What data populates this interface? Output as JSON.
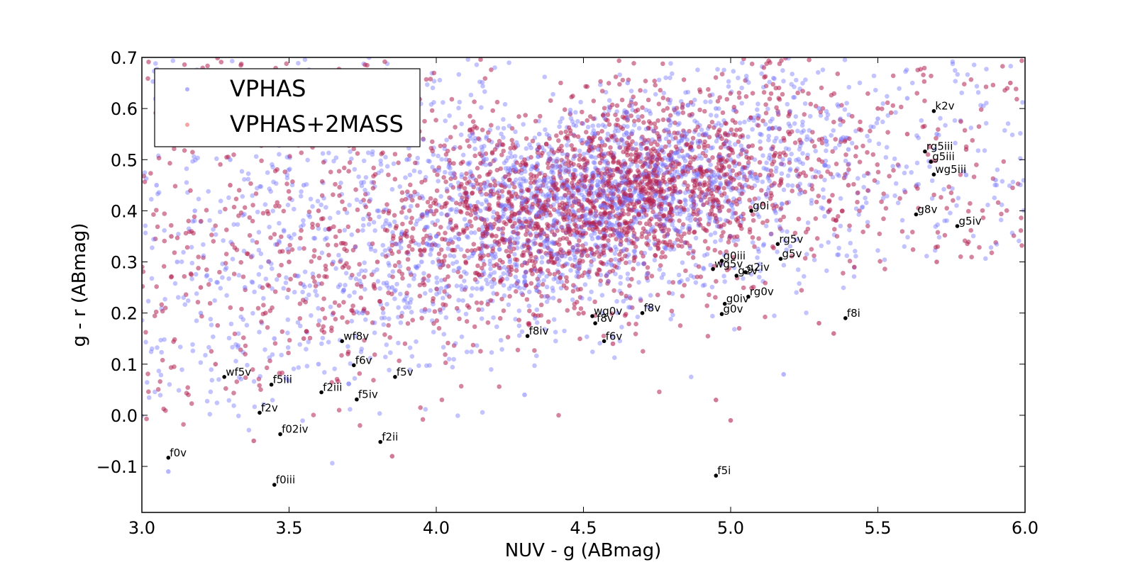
{
  "chart_data": {
    "type": "scatter",
    "xlabel": "NUV - g (ABmag)",
    "ylabel": "g - r (ABmag)",
    "xlim": [
      3.0,
      6.0
    ],
    "ylim": [
      -0.19,
      0.7
    ],
    "xticks": [
      3.0,
      3.5,
      4.0,
      4.5,
      5.0,
      5.5,
      6.0
    ],
    "xtick_labels": [
      "3.0",
      "3.5",
      "4.0",
      "4.5",
      "5.0",
      "5.5",
      "6.0"
    ],
    "yticks": [
      -0.1,
      0.0,
      0.1,
      0.2,
      0.3,
      0.4,
      0.5,
      0.6,
      0.7
    ],
    "ytick_labels": [
      "−0.1",
      "0.0",
      "0.1",
      "0.2",
      "0.3",
      "0.4",
      "0.5",
      "0.6",
      "0.7"
    ],
    "grid": false,
    "legend_position": "top-left",
    "series": [
      {
        "name": "VPHAS",
        "color": "#6f6fff",
        "points": [
          [
            3.05,
            0.45
          ],
          [
            3.1,
            0.62
          ],
          [
            3.12,
            0.3
          ],
          [
            3.15,
            0.55
          ],
          [
            3.18,
            0.4
          ],
          [
            3.2,
            0.2
          ],
          [
            3.09,
            -0.11
          ],
          [
            3.3,
            0.5
          ],
          [
            3.35,
            0.25
          ],
          [
            3.4,
            0.6
          ],
          [
            3.45,
            0.15
          ],
          [
            3.5,
            0.35
          ],
          [
            3.55,
            0.45
          ],
          [
            3.6,
            0.1
          ],
          [
            3.65,
            0.3
          ],
          [
            3.7,
            0.55
          ],
          [
            3.75,
            0.2
          ],
          [
            3.8,
            0.4
          ],
          [
            3.85,
            0.25
          ],
          [
            3.9,
            0.5
          ],
          [
            3.95,
            0.3
          ],
          [
            4.0,
            0.35
          ],
          [
            4.05,
            0.45
          ],
          [
            4.1,
            0.25
          ],
          [
            4.15,
            0.4
          ],
          [
            4.2,
            0.5
          ],
          [
            4.25,
            0.3
          ],
          [
            4.3,
            0.42
          ],
          [
            4.35,
            0.55
          ],
          [
            4.4,
            0.38
          ],
          [
            4.45,
            0.48
          ],
          [
            4.5,
            0.36
          ],
          [
            4.55,
            0.52
          ],
          [
            4.6,
            0.44
          ],
          [
            4.65,
            0.58
          ],
          [
            4.7,
            0.4
          ],
          [
            4.75,
            0.5
          ],
          [
            4.8,
            0.47
          ],
          [
            4.85,
            0.55
          ],
          [
            4.9,
            0.42
          ],
          [
            4.95,
            0.6
          ],
          [
            5.0,
            0.5
          ],
          [
            5.05,
            0.45
          ],
          [
            5.1,
            0.55
          ],
          [
            5.15,
            0.4
          ],
          [
            5.2,
            0.5
          ],
          [
            5.3,
            0.6
          ],
          [
            5.4,
            0.52
          ],
          [
            5.5,
            0.58
          ],
          [
            5.6,
            0.62
          ],
          [
            5.7,
            0.55
          ],
          [
            5.8,
            0.47
          ],
          [
            5.9,
            0.46
          ],
          [
            5.18,
            0.08
          ],
          [
            4.3,
            0.04
          ],
          [
            4.65,
            0.65
          ]
        ]
      },
      {
        "name": "VPHAS+2MASS",
        "color": "#b32050",
        "points": [
          [
            3.1,
            0.35
          ],
          [
            3.2,
            0.25
          ],
          [
            3.25,
            0.1
          ],
          [
            3.3,
            0.45
          ],
          [
            3.38,
            -0.05
          ],
          [
            3.42,
            0.2
          ],
          [
            3.5,
            0.3
          ],
          [
            3.55,
            0.15
          ],
          [
            3.6,
            0.4
          ],
          [
            3.65,
            0.2
          ],
          [
            3.7,
            0.12
          ],
          [
            3.8,
            0.3
          ],
          [
            3.85,
            -0.08
          ],
          [
            3.9,
            0.35
          ],
          [
            4.0,
            0.4
          ],
          [
            4.1,
            0.3
          ],
          [
            4.2,
            0.45
          ],
          [
            4.25,
            0.38
          ],
          [
            4.3,
            0.5
          ],
          [
            4.35,
            0.42
          ],
          [
            4.4,
            0.45
          ],
          [
            4.45,
            0.4
          ],
          [
            4.5,
            0.5
          ],
          [
            4.55,
            0.43
          ],
          [
            4.6,
            0.47
          ],
          [
            4.65,
            0.52
          ],
          [
            4.7,
            0.44
          ],
          [
            4.75,
            0.5
          ],
          [
            4.8,
            0.46
          ],
          [
            4.85,
            0.53
          ],
          [
            4.9,
            0.48
          ],
          [
            5.0,
            0.52
          ],
          [
            5.1,
            0.47
          ],
          [
            5.2,
            0.55
          ],
          [
            5.3,
            0.5
          ],
          [
            5.4,
            0.45
          ],
          [
            5.5,
            0.6
          ],
          [
            5.6,
            0.55
          ],
          [
            5.7,
            0.3
          ],
          [
            5.8,
            0.52
          ],
          [
            5.95,
            0.65
          ],
          [
            4.95,
            0.03
          ],
          [
            5.0,
            -0.01
          ],
          [
            5.3,
            0.18
          ],
          [
            5.35,
            0.16
          ],
          [
            5.42,
            0.29
          ],
          [
            4.6,
            0.14
          ],
          [
            4.5,
            0.2
          ]
        ]
      }
    ],
    "annotations": [
      {
        "label": "f0v",
        "x": 3.09,
        "y": -0.083
      },
      {
        "label": "f0iii",
        "x": 3.45,
        "y": -0.136
      },
      {
        "label": "f02iv",
        "x": 3.47,
        "y": -0.037
      },
      {
        "label": "f2v",
        "x": 3.4,
        "y": 0.005
      },
      {
        "label": "wf5v",
        "x": 3.28,
        "y": 0.075
      },
      {
        "label": "f5iii",
        "x": 3.44,
        "y": 0.06
      },
      {
        "label": "f2iii",
        "x": 3.61,
        "y": 0.045
      },
      {
        "label": "f5iv",
        "x": 3.73,
        "y": 0.031
      },
      {
        "label": "f2ii",
        "x": 3.81,
        "y": -0.052
      },
      {
        "label": "f6v",
        "x": 3.72,
        "y": 0.098
      },
      {
        "label": "wf8v",
        "x": 3.68,
        "y": 0.145
      },
      {
        "label": "f5v",
        "x": 3.86,
        "y": 0.075
      },
      {
        "label": "f8iv",
        "x": 4.31,
        "y": 0.155
      },
      {
        "label": "wg0v",
        "x": 4.53,
        "y": 0.194
      },
      {
        "label": "f8v",
        "x": 4.54,
        "y": 0.18
      },
      {
        "label": "f6v",
        "x": 4.57,
        "y": 0.145
      },
      {
        "label": "f8v",
        "x": 4.7,
        "y": 0.2
      },
      {
        "label": "g0i",
        "x": 5.07,
        "y": 0.4
      },
      {
        "label": "g0iii",
        "x": 4.97,
        "y": 0.302
      },
      {
        "label": "wg5v",
        "x": 4.94,
        "y": 0.286
      },
      {
        "label": "g2v",
        "x": 5.02,
        "y": 0.273
      },
      {
        "label": "g2iv",
        "x": 5.05,
        "y": 0.28
      },
      {
        "label": "rg0v",
        "x": 5.06,
        "y": 0.232
      },
      {
        "label": "g0iv",
        "x": 4.98,
        "y": 0.218
      },
      {
        "label": "g0v",
        "x": 4.97,
        "y": 0.198
      },
      {
        "label": "rg5v",
        "x": 5.16,
        "y": 0.335
      },
      {
        "label": "g5v",
        "x": 5.17,
        "y": 0.306
      },
      {
        "label": "f8i",
        "x": 5.39,
        "y": 0.19
      },
      {
        "label": "f5i",
        "x": 4.95,
        "y": -0.118
      },
      {
        "label": "k2v",
        "x": 5.69,
        "y": 0.595
      },
      {
        "label": "rg5iii",
        "x": 5.66,
        "y": 0.516
      },
      {
        "label": "g5iii",
        "x": 5.68,
        "y": 0.496
      },
      {
        "label": "wg5iii",
        "x": 5.69,
        "y": 0.471
      },
      {
        "label": "g8v",
        "x": 5.63,
        "y": 0.393
      },
      {
        "label": "g5iv",
        "x": 5.77,
        "y": 0.37
      }
    ]
  }
}
